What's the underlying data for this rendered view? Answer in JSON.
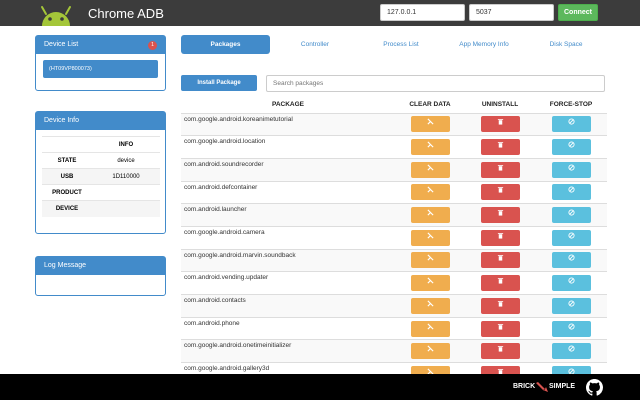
{
  "header": {
    "title": "Chrome ADB",
    "host_value": "127.0.0.1",
    "port_value": "5037",
    "connect_label": "Connect"
  },
  "device_list": {
    "title": "Device List",
    "count": "1",
    "devices": [
      "(HT09VP800073)"
    ]
  },
  "device_info": {
    "title": "Device Info",
    "header": "INFO",
    "rows": [
      {
        "key": "STATE",
        "value": "device"
      },
      {
        "key": "USB",
        "value": "1D110000"
      },
      {
        "key": "PRODUCT",
        "value": ""
      },
      {
        "key": "DEVICE",
        "value": ""
      }
    ]
  },
  "log": {
    "title": "Log Message"
  },
  "tabs": [
    {
      "label": "Packages"
    },
    {
      "label": "Controller"
    },
    {
      "label": "Process List"
    },
    {
      "label": "App Memory Info"
    },
    {
      "label": "Disk Space"
    }
  ],
  "packages": {
    "install_label": "Install Package",
    "search_placeholder": "Search packages",
    "columns": [
      "PACKAGE",
      "CLEAR DATA",
      "UNINSTALL",
      "FORCE-STOP"
    ],
    "rows": [
      "com.google.android.koreanimetutorial",
      "com.google.android.location",
      "com.android.soundrecorder",
      "com.android.defcontainer",
      "com.android.launcher",
      "com.google.android.camera",
      "com.google.android.marvin.soundback",
      "com.android.vending.updater",
      "com.android.contacts",
      "com.android.phone",
      "com.google.android.onetimeinitializer",
      "com.google.android.gallery3d"
    ],
    "icons": {
      "clear": "broom-icon",
      "uninstall": "trash-icon",
      "force_stop": "ban-icon"
    }
  },
  "footer": {
    "brand_left": "BRICK",
    "brand_right": "SIMPLE"
  },
  "colors": {
    "primary": "#428bca",
    "success": "#5cb85c",
    "warning": "#f0ad4e",
    "danger": "#d9534f",
    "info": "#5bc0de",
    "android_green": "#a4c639"
  }
}
